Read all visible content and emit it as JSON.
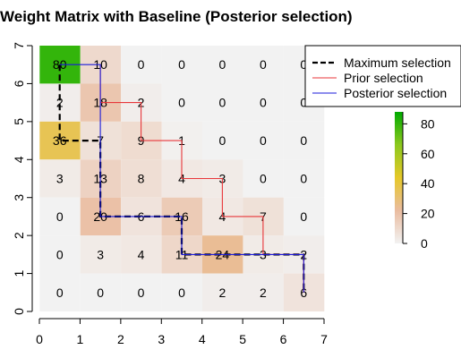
{
  "chart_data": {
    "type": "heatmap",
    "title": "Weight Matrix with Baseline (Posterior selection)",
    "xlim": [
      0,
      7
    ],
    "ylim": [
      0,
      7
    ],
    "x_ticks": [
      "0",
      "1",
      "2",
      "3",
      "4",
      "5",
      "6",
      "7"
    ],
    "y_ticks": [
      "0",
      "1",
      "2",
      "3",
      "4",
      "5",
      "6",
      "7"
    ],
    "rows": [
      [
        "80",
        "10",
        "0",
        "0",
        "0",
        "0",
        "0"
      ],
      [
        "2",
        "18",
        "2",
        "0",
        "0",
        "0",
        "0"
      ],
      [
        "36",
        "7",
        "9",
        "1",
        "0",
        "0",
        "0"
      ],
      [
        "3",
        "13",
        "8",
        "4",
        "3",
        "0",
        "0"
      ],
      [
        "0",
        "20",
        "6",
        "16",
        "4",
        "7",
        "0"
      ],
      [
        "0",
        "3",
        "4",
        "11",
        "24",
        "3",
        "2"
      ],
      [
        "0",
        "0",
        "0",
        "0",
        "2",
        "2",
        "6"
      ]
    ],
    "values": [
      [
        80,
        10,
        0,
        0,
        0,
        0,
        0
      ],
      [
        2,
        18,
        2,
        0,
        0,
        0,
        0
      ],
      [
        36,
        7,
        9,
        1,
        0,
        0,
        0
      ],
      [
        3,
        13,
        8,
        4,
        3,
        0,
        0
      ],
      [
        0,
        20,
        6,
        16,
        4,
        7,
        0
      ],
      [
        0,
        3,
        4,
        11,
        24,
        3,
        2
      ],
      [
        0,
        0,
        0,
        0,
        2,
        2,
        6
      ]
    ],
    "colorbar": {
      "ticks": [
        "0",
        "20",
        "40",
        "60",
        "80"
      ],
      "range": [
        0,
        88
      ]
    },
    "paths": [
      {
        "name": "Maximum selection",
        "color": "#000000",
        "dashed": true,
        "points": [
          [
            0.5,
            6.5
          ],
          [
            0.5,
            4.5
          ],
          [
            1.5,
            4.5
          ],
          [
            1.5,
            2.5
          ],
          [
            3.5,
            2.5
          ],
          [
            3.5,
            1.5
          ],
          [
            6.5,
            1.5
          ],
          [
            6.5,
            0.5
          ]
        ]
      },
      {
        "name": "Prior selection",
        "color": "#e8363a",
        "dashed": false,
        "points": [
          [
            1.5,
            6.5
          ],
          [
            1.5,
            5.5
          ],
          [
            2.5,
            5.5
          ],
          [
            2.5,
            4.5
          ],
          [
            3.5,
            4.5
          ],
          [
            3.5,
            3.5
          ],
          [
            4.5,
            3.5
          ],
          [
            4.5,
            2.5
          ],
          [
            5.5,
            2.5
          ],
          [
            5.5,
            1.5
          ],
          [
            6.5,
            1.5
          ],
          [
            6.5,
            0.5
          ]
        ]
      },
      {
        "name": "Posterior selection",
        "color": "#1a1adb",
        "dashed": false,
        "points": [
          [
            0.5,
            6.5
          ],
          [
            1.5,
            6.5
          ],
          [
            1.5,
            2.5
          ],
          [
            3.5,
            2.5
          ],
          [
            3.5,
            1.5
          ],
          [
            6.5,
            1.5
          ],
          [
            6.5,
            0.5
          ]
        ]
      }
    ],
    "legend_position": "top-right"
  }
}
